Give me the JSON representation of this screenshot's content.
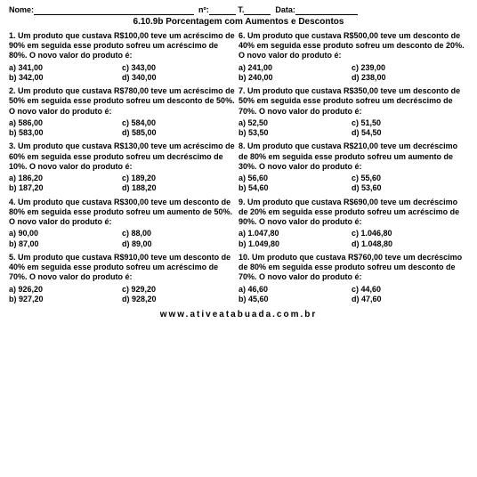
{
  "header": {
    "nome_label": "Nome:",
    "nome_width": 180,
    "n_label": "nº:",
    "n_width": 30,
    "t_label": "T.",
    "t_width": 30,
    "data_label": "Data:",
    "data_width": 70
  },
  "title": "6.10.9b Porcentagem com Aumentos e Descontos",
  "left": [
    {
      "text": "1. Um produto que custava R$100,00 teve um acréscimo de 90% em seguida esse produto sofreu um acréscimo de  80%.  O novo valor do produto é:",
      "opts": [
        "a) 341,00",
        "c) 343,00",
        "b) 342,00",
        "d) 340,00"
      ]
    },
    {
      "text": "2. Um produto que custava R$780,00 teve um acréscimo de 50% em seguida esse produto sofreu um desconto de  50%.  O novo valor do produto é:",
      "opts": [
        "a) 586,00",
        "c) 584,00",
        "b) 583,00",
        "d) 585,00"
      ]
    },
    {
      "text": "3. Um produto que custava R$130,00 teve um acréscimo de 60% em seguida esse produto sofreu um decréscimo de  10%.  O novo valor do produto é:",
      "opts": [
        "a) 186,20",
        "c) 189,20",
        "b) 187,20",
        "d) 188,20"
      ]
    },
    {
      "text": "4. Um produto que custava R$300,00 teve um desconto de 80% em seguida esse produto sofreu um aumento de  50%.  O novo valor do produto é:",
      "opts": [
        "a) 90,00",
        "c) 88,00",
        "b) 87,00",
        "d) 89,00"
      ]
    },
    {
      "text": "5. Um produto que custava R$910,00 teve um desconto de 40% em seguida esse produto sofreu um acréscimo de  70%.  O novo valor do produto é:",
      "opts": [
        "a) 926,20",
        "c) 929,20",
        "b) 927,20",
        "d) 928,20"
      ]
    }
  ],
  "right": [
    {
      "text": "6. Um produto que custava R$500,00 teve um desconto de 40% em seguida esse produto sofreu um desconto de 20%.  O novo valor do produto é:",
      "opts": [
        "a) 241,00",
        "c) 239,00",
        "b) 240,00",
        "d) 238,00"
      ]
    },
    {
      "text": "7. Um produto que custava R$350,00 teve um desconto de 50% em seguida esse produto sofreu um decréscimo de 70%.  O novo valor do produto é:",
      "opts": [
        "a) 52,50",
        "c) 51,50",
        "b) 53,50",
        "d) 54,50"
      ]
    },
    {
      "text": "8. Um produto que custava R$210,00 teve um decréscimo de 80% em seguida esse produto sofreu um aumento de 30%.  O novo valor do produto é:",
      "opts": [
        "a) 56,60",
        "c) 55,60",
        "b) 54,60",
        "d) 53,60"
      ]
    },
    {
      "text": "9. Um produto que custava R$690,00 teve um decréscimo de 20% em seguida esse produto sofreu um acréscimo de 90%.  O novo valor do produto é:",
      "opts": [
        "a) 1.047,80",
        "c) 1.046,80",
        "b) 1.049,80",
        "d) 1.048,80"
      ]
    },
    {
      "text": "10. Um produto que custava R$760,00 teve um decréscimo de 80% em seguida esse produto sofreu um desconto de 70%.  O novo valor do produto é:",
      "opts": [
        "a) 46,60",
        "c) 44,60",
        "b) 45,60",
        "d) 47,60"
      ]
    }
  ],
  "footer": "www.ativeatabuada.com.br"
}
